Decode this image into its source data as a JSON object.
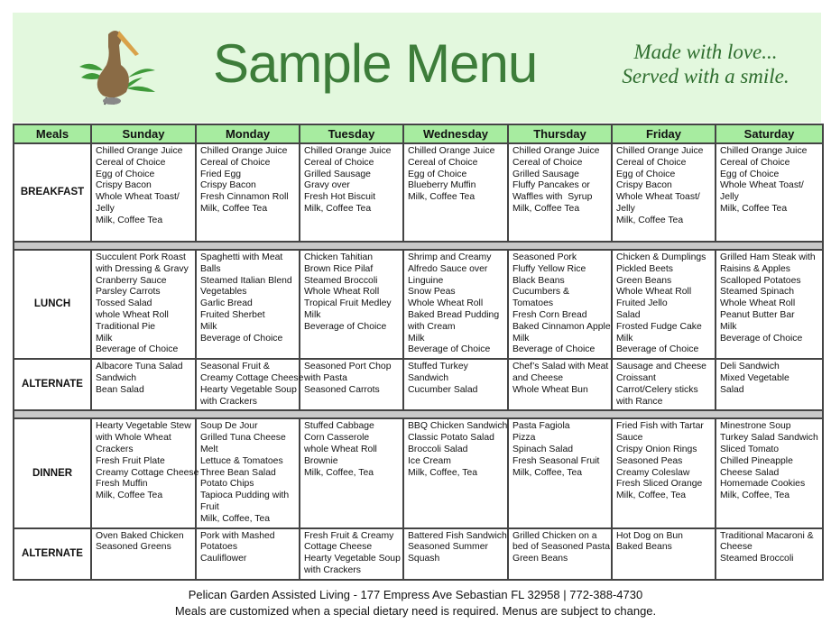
{
  "header": {
    "title": "Sample Menu",
    "tagline_line1": "Made with love...",
    "tagline_line2": "Served with a smile.",
    "logo": "pelican-logo"
  },
  "colors": {
    "banner": "#e3f8de",
    "title": "#3d7d3a",
    "header_row": "#a7eca0",
    "separator": "#c9c9c9"
  },
  "table": {
    "columns": [
      "Meals",
      "Sunday",
      "Monday",
      "Tuesday",
      "Wednesday",
      "Thursday",
      "Friday",
      "Saturday"
    ],
    "rows": [
      {
        "meal": "BREAKFAST",
        "cells": [
          [
            "Chilled Orange Juice",
            "Cereal of Choice",
            "Egg of Choice",
            "Crispy Bacon",
            "Whole Wheat Toast/",
            "Jelly",
            "Milk, Coffee Tea"
          ],
          [
            "Chilled Orange Juice",
            "Cereal of Choice",
            "Fried Egg",
            "Crispy Bacon",
            "Fresh Cinnamon Roll",
            "Milk, Coffee Tea"
          ],
          [
            "Chilled Orange Juice",
            "Cereal of Choice",
            "Grilled Sausage",
            "Gravy over",
            "Fresh Hot Biscuit",
            "Milk, Coffee Tea"
          ],
          [
            "Chilled Orange Juice",
            "Cereal of Choice",
            "Egg of Choice",
            "Blueberry Muffin",
            "Milk, Coffee Tea"
          ],
          [
            "Chilled Orange Juice",
            "Cereal of Choice",
            "Grilled Sausage",
            "Fluffy Pancakes or",
            "Waffles with  Syrup",
            "Milk, Coffee Tea"
          ],
          [
            "Chilled Orange Juice",
            "Cereal of Choice",
            "Egg of Choice",
            "Crispy Bacon",
            "Whole Wheat Toast/",
            "Jelly",
            "Milk, Coffee Tea"
          ],
          [
            "Chilled Orange Juice",
            "Cereal of Choice",
            "Egg of Choice",
            "Whole Wheat Toast/",
            "Jelly",
            "Milk, Coffee Tea"
          ]
        ]
      },
      {
        "separator": true
      },
      {
        "meal": "LUNCH",
        "cells": [
          [
            "Succulent Pork Roast",
            "with Dressing & Gravy",
            "Cranberry Sauce",
            "Parsley Carrots",
            "Tossed Salad",
            "whole Wheat Roll",
            "Traditional Pie",
            "Milk",
            "Beverage of Choice"
          ],
          [
            "Spaghetti with Meat",
            "Balls",
            "Steamed Italian Blend",
            "Vegetables",
            "Garlic Bread",
            "Fruited Sherbet",
            "Milk",
            "Beverage of Choice"
          ],
          [
            "Chicken Tahitian",
            "Brown Rice Pilaf",
            "Steamed Broccoli",
            "Whole Wheat Roll",
            "Tropical Fruit Medley",
            "Milk",
            "Beverage of Choice"
          ],
          [
            "Shrimp and Creamy",
            "Alfredo Sauce over",
            "Linguine",
            "Snow Peas",
            "Whole Wheat Roll",
            "Baked Bread Pudding",
            "with Cream",
            "Milk",
            "Beverage of Choice"
          ],
          [
            "Seasoned Pork",
            "Fluffy Yellow Rice",
            "Black Beans",
            "Cucumbers &",
            "Tomatoes",
            "Fresh Corn Bread",
            "Baked Cinnamon Apple",
            "Milk",
            "Beverage of Choice"
          ],
          [
            "Chicken & Dumplings",
            "Pickled Beets",
            "Green Beans",
            "Whole Wheat Roll",
            "Fruited Jello",
            "Salad",
            "Frosted Fudge Cake",
            "Milk",
            "Beverage of Choice"
          ],
          [
            "Grilled Ham Steak with",
            "Raisins & Apples",
            "Scalloped Potatoes",
            "Steamed Spinach",
            "Whole Wheat Roll",
            "Peanut Butter Bar",
            "Milk",
            "Beverage of Choice"
          ]
        ]
      },
      {
        "meal": "ALTERNATE",
        "cells": [
          [
            "Albacore Tuna Salad",
            "Sandwich",
            "Bean Salad"
          ],
          [
            "Seasonal Fruit &",
            "Creamy Cottage Cheese",
            "Hearty Vegetable Soup",
            "with Crackers"
          ],
          [
            "Seasoned Port Chop",
            "with Pasta",
            "Seasoned Carrots"
          ],
          [
            "Stuffed Turkey",
            "Sandwich",
            "Cucumber Salad"
          ],
          [
            "Chef’s Salad with Meat",
            "and Cheese",
            "Whole Wheat Bun"
          ],
          [
            "Sausage and Cheese",
            "Croissant",
            "Carrot/Celery sticks",
            "with Rance"
          ],
          [
            "Deli Sandwich",
            "Mixed Vegetable",
            "Salad"
          ]
        ]
      },
      {
        "separator": true
      },
      {
        "meal": "DINNER",
        "cells": [
          [
            "Hearty Vegetable Stew",
            "with Whole Wheat",
            "Crackers",
            "Fresh Fruit Plate",
            "Creamy Cottage Cheese",
            "Fresh Muffin",
            "Milk, Coffee Tea"
          ],
          [
            "Soup De Jour",
            "Grilled Tuna Cheese",
            "Melt",
            "Lettuce & Tomatoes",
            "Three Bean Salad",
            "Potato Chips",
            "Tapioca Pudding with",
            "Fruit",
            "Milk, Coffee, Tea"
          ],
          [
            "Stuffed Cabbage",
            "Corn Casserole",
            "whole Wheat Roll",
            "Brownie",
            "Milk, Coffee, Tea"
          ],
          [
            "BBQ Chicken Sandwich",
            "Classic Potato Salad",
            "Broccoli Salad",
            "Ice Cream",
            "Milk, Coffee, Tea"
          ],
          [
            "Pasta Fagiola",
            "Pizza",
            "Spinach Salad",
            "Fresh Seasonal Fruit",
            "Milk, Coffee, Tea"
          ],
          [
            "Fried Fish with Tartar",
            "Sauce",
            "Crispy Onion Rings",
            "Seasoned Peas",
            "Creamy Coleslaw",
            "Fresh Sliced Orange",
            "Milk, Coffee, Tea"
          ],
          [
            "Minestrone Soup",
            "Turkey Salad Sandwich",
            "Sliced Tomato",
            "Chilled Pineapple",
            "Cheese Salad",
            "Homemade Cookies",
            "Milk, Coffee, Tea"
          ]
        ]
      },
      {
        "meal": "ALTERNATE",
        "cells": [
          [
            "Oven Baked Chicken",
            "Seasoned Greens"
          ],
          [
            "Pork with Mashed",
            "Potatoes",
            "Cauliflower"
          ],
          [
            "Fresh Fruit & Creamy",
            "Cottage Cheese",
            "Hearty Vegetable Soup",
            "with Crackers"
          ],
          [
            "Battered Fish Sandwich",
            "Seasoned Summer",
            "Squash"
          ],
          [
            "Grilled Chicken on a",
            "bed of Seasoned Pasta",
            "Green Beans"
          ],
          [
            "Hot Dog on Bun",
            "Baked Beans"
          ],
          [
            "Traditional Macaroni &",
            "Cheese",
            "Steamed Broccoli"
          ]
        ]
      }
    ]
  },
  "footer": {
    "line1": "Pelican Garden Assisted Living - 177 Empress Ave Sebastian FL 32958    |    772-388-4730",
    "line2": "Meals are customized when a special dietary need is required.  Menus are subject to change."
  }
}
